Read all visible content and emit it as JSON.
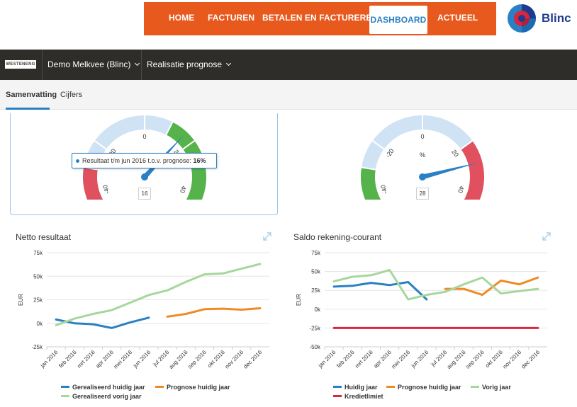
{
  "nav": {
    "items": [
      {
        "label": "HOME",
        "active": false
      },
      {
        "label": "FACTUREN",
        "active": false
      },
      {
        "label": "BETALEN EN FACTUREREN",
        "active": false
      },
      {
        "label": "DASHBOARD",
        "active": true
      },
      {
        "label": "ACTUEEL",
        "active": false
      }
    ],
    "accent": "#e8591d"
  },
  "brand": {
    "name": "Blinc"
  },
  "company_logo_text": "WESTENENG",
  "context": {
    "company": "Demo Melkvee (Blinc)",
    "view": "Realisatie prognose"
  },
  "tabs": [
    {
      "label": "Samenvatting",
      "active": true
    },
    {
      "label": "Cijfers",
      "active": false
    }
  ],
  "gauges": [
    {
      "value": 16,
      "min": -50,
      "max": 50,
      "ticks": [
        "-40",
        "-20",
        "0",
        "20",
        "40"
      ],
      "unit": "",
      "tooltip": {
        "text": "Resultaat t/m jun 2016 t.o.v. prognose: ",
        "value": "16%"
      }
    },
    {
      "value": 28,
      "min": -50,
      "max": 50,
      "ticks": [
        "-40",
        "-20",
        "0",
        "20",
        "40"
      ],
      "unit": "%"
    }
  ],
  "chart_data": [
    {
      "type": "line",
      "title": "Netto resultaat",
      "ylabel": "EUR",
      "ylim": [
        -25000,
        75000
      ],
      "yticks": [
        "-25k",
        "0k",
        "25k",
        "50k",
        "75k"
      ],
      "categories": [
        "jan 2016",
        "feb 2016",
        "mrt 2016",
        "apr 2016",
        "mei 2016",
        "jun 2016",
        "jul 2016",
        "aug 2016",
        "sep 2016",
        "okt 2016",
        "nov 2016",
        "dec 2016"
      ],
      "grid": true,
      "legend": "bottom",
      "series": [
        {
          "name": "Gerealiseerd huidig jaar",
          "color": "#2a80c4",
          "values": [
            4000,
            0,
            -1000,
            -5000,
            1000,
            6000,
            null,
            null,
            null,
            null,
            null,
            null
          ]
        },
        {
          "name": "Prognose huidig jaar",
          "color": "#f08a24",
          "values": [
            null,
            null,
            null,
            null,
            null,
            null,
            7000,
            10000,
            15000,
            15500,
            14500,
            16000
          ]
        },
        {
          "name": "Gerealiseerd vorig jaar",
          "color": "#a6d79b",
          "values": [
            -2000,
            5000,
            10000,
            14000,
            22000,
            30000,
            35000,
            44000,
            52000,
            53000,
            58000,
            63000
          ]
        }
      ]
    },
    {
      "type": "line",
      "title": "Saldo rekening-courant",
      "ylabel": "EUR",
      "ylim": [
        -50000,
        75000
      ],
      "yticks": [
        "-50k",
        "-25k",
        "0k",
        "25k",
        "50k",
        "75k"
      ],
      "categories": [
        "jan 2016",
        "feb 2016",
        "mrt 2016",
        "apr 2016",
        "mei 2016",
        "jun 2016",
        "jul 2016",
        "aug 2016",
        "sep 2016",
        "okt 2016",
        "nov 2016",
        "dec 2016"
      ],
      "grid": true,
      "legend": "bottom",
      "series": [
        {
          "name": "Huidig jaar",
          "color": "#2a80c4",
          "values": [
            30000,
            31000,
            35000,
            32000,
            36000,
            13000,
            null,
            null,
            null,
            null,
            null,
            null
          ]
        },
        {
          "name": "Prognose huidig jaar",
          "color": "#f08a24",
          "values": [
            null,
            null,
            null,
            null,
            null,
            null,
            27000,
            27000,
            19000,
            38000,
            33000,
            42000
          ]
        },
        {
          "name": "Vorig jaar",
          "color": "#a6d79b",
          "values": [
            37000,
            43000,
            45000,
            52000,
            13000,
            19000,
            23000,
            33000,
            42000,
            21000,
            24000,
            27000
          ]
        },
        {
          "name": "Kredietlimiet",
          "color": "#d9263f",
          "values": [
            -25000,
            -25000,
            -25000,
            -25000,
            -25000,
            -25000,
            -25000,
            -25000,
            -25000,
            -25000,
            -25000,
            -25000
          ]
        }
      ]
    }
  ]
}
